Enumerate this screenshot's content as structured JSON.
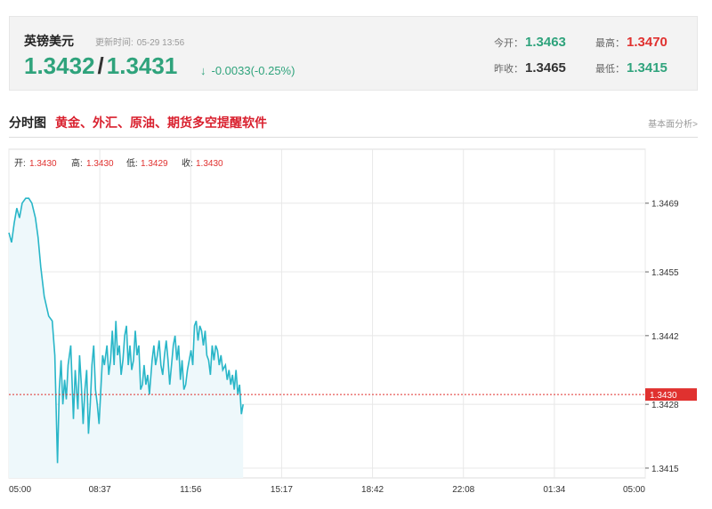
{
  "quote": {
    "name": "英镑美元",
    "update_label": "更新时间:",
    "update_time": "05-29 13:56",
    "bid": "1.3432",
    "separator": "/",
    "ask": "1.3431",
    "arrow": "↓",
    "change": "-0.0033(-0.25%)",
    "open_label": "今开：",
    "open": "1.3463",
    "prev_close_label": "昨收：",
    "prev_close": "1.3465",
    "high_label": "最高：",
    "high": "1.3470",
    "low_label": "最低：",
    "low": "1.3415"
  },
  "section": {
    "title": "分时图",
    "ad_text": "黄金、外汇、原油、期货多空提醒软件",
    "link": "基本面分析>"
  },
  "ohlc": {
    "open_label": "开:",
    "open": "1.3430",
    "high_label": "高:",
    "high": "1.3430",
    "low_label": "低:",
    "low": "1.3429",
    "close_label": "收:",
    "close": "1.3430"
  },
  "colors": {
    "line": "#29b6c8",
    "fill": "#eef8fb",
    "green": "#2fa37c",
    "red": "#e0312f",
    "ref_line": "#e0312f"
  },
  "chart_data": {
    "type": "area",
    "x_tick_labels": [
      "05:00",
      "08:37",
      "11:56",
      "15:17",
      "18:42",
      "22:08",
      "01:34",
      "05:00"
    ],
    "y_tick_labels": [
      "1.3469",
      "1.3455",
      "1.3442",
      "1.3428",
      "1.3415"
    ],
    "y_ticks": [
      1.3469,
      1.3455,
      1.3442,
      1.3428,
      1.3415
    ],
    "ylim": [
      1.3413,
      1.348
    ],
    "x_range_minutes": 1440,
    "reference_value": 1.343,
    "reference_label": "1.3430",
    "grid": true,
    "series": [
      {
        "x": [
          0,
          6,
          12,
          18,
          24,
          30,
          38,
          45,
          52,
          60,
          66,
          72,
          80,
          90,
          98,
          104,
          110,
          114,
          118,
          122,
          126,
          130,
          134,
          140,
          146,
          150,
          156,
          160,
          164,
          168,
          172,
          176,
          180,
          184,
          188,
          192,
          196,
          200,
          204,
          208,
          212,
          216,
          222,
          226,
          230,
          234,
          238,
          242,
          246,
          250,
          254,
          258,
          262,
          266,
          270,
          274,
          278,
          282,
          286,
          290,
          294,
          298,
          302,
          306,
          310,
          314,
          318,
          324,
          328,
          332,
          336,
          340,
          344,
          348,
          352,
          356,
          360,
          364,
          368,
          372,
          376,
          380,
          384,
          388,
          392,
          396,
          400,
          404,
          408,
          412,
          416,
          420,
          424,
          428,
          432,
          436,
          440,
          444,
          448,
          452,
          456,
          460,
          464,
          468,
          472,
          476,
          480,
          484,
          490,
          494,
          498,
          502,
          506,
          510,
          514,
          518,
          522,
          526,
          530
        ],
        "y": [
          1.3463,
          1.3461,
          1.3465,
          1.3468,
          1.3466,
          1.3469,
          1.347,
          1.347,
          1.3469,
          1.3466,
          1.3462,
          1.3456,
          1.345,
          1.3446,
          1.3445,
          1.3438,
          1.3416,
          1.3431,
          1.3437,
          1.3428,
          1.3433,
          1.3429,
          1.3436,
          1.344,
          1.3425,
          1.3435,
          1.3427,
          1.3438,
          1.3432,
          1.3424,
          1.3431,
          1.3435,
          1.3422,
          1.3428,
          1.3436,
          1.344,
          1.3431,
          1.3428,
          1.3424,
          1.3431,
          1.3438,
          1.3436,
          1.344,
          1.3434,
          1.3437,
          1.3443,
          1.3436,
          1.3445,
          1.3438,
          1.344,
          1.3434,
          1.3437,
          1.3442,
          1.3444,
          1.3436,
          1.344,
          1.3435,
          1.3437,
          1.3443,
          1.3438,
          1.344,
          1.3431,
          1.3432,
          1.3436,
          1.3432,
          1.3434,
          1.343,
          1.3437,
          1.344,
          1.3436,
          1.3438,
          1.3441,
          1.3436,
          1.3434,
          1.3438,
          1.3441,
          1.3437,
          1.3432,
          1.3436,
          1.344,
          1.3442,
          1.3437,
          1.344,
          1.3433,
          1.3437,
          1.3431,
          1.3432,
          1.3435,
          1.3437,
          1.3439,
          1.3436,
          1.3444,
          1.3445,
          1.3441,
          1.3444,
          1.3443,
          1.344,
          1.3443,
          1.3438,
          1.3437,
          1.3434,
          1.344,
          1.3437,
          1.344,
          1.3439,
          1.3436,
          1.3438,
          1.3435,
          1.3436,
          1.3433,
          1.3435,
          1.3432,
          1.3434,
          1.3431,
          1.3435,
          1.343,
          1.3432,
          1.3426,
          1.3428
        ]
      }
    ]
  }
}
